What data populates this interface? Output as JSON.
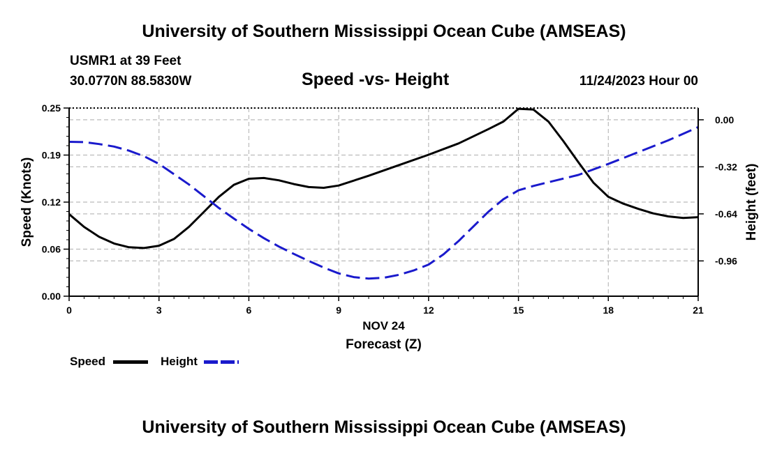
{
  "header": {
    "top_title": "University of Southern Mississippi Ocean Cube (AMSEAS)",
    "station": "USMR1 at 39 Feet",
    "coords": "30.0770N  88.5830W",
    "chart_title": "Speed -vs- Height",
    "date": "11/24/2023 Hour 00"
  },
  "footer": {
    "bottom_title": "University of Southern Mississippi Ocean Cube (AMSEAS)"
  },
  "colors": {
    "speed": "#000000",
    "height": "#1a1acc",
    "grid": "#bbbbbb"
  },
  "chart_data": {
    "type": "line",
    "title": "Speed -vs- Height",
    "xlabel_date": "NOV 24",
    "xlabel": "Forecast (Z)",
    "ylabel": "Speed (Knots)",
    "y2label": "Height (feet)",
    "xlim": [
      0,
      21
    ],
    "ylim": [
      0,
      0.25
    ],
    "y2lim": [
      -1.2,
      0.08
    ],
    "x_ticks": [
      0,
      3,
      6,
      9,
      12,
      15,
      18,
      21
    ],
    "x_tick_labels": [
      "0",
      "3",
      "6",
      "9",
      "12",
      "15",
      "18",
      "21"
    ],
    "y_ticks": [
      0,
      0.0625,
      0.125,
      0.1875,
      0.25
    ],
    "y_tick_labels": [
      "0.00",
      "0.06",
      "0.12",
      "0.19",
      "0.25"
    ],
    "y2_ticks": [
      0,
      -0.32,
      -0.64,
      -0.96
    ],
    "y2_tick_labels": [
      "0.00",
      "-0.32",
      "-0.64",
      "-0.96"
    ],
    "legend": [
      {
        "name": "Speed",
        "style": "solid"
      },
      {
        "name": "Height",
        "style": "dashed"
      }
    ],
    "series": [
      {
        "name": "Speed",
        "axis": "left",
        "x": [
          0,
          0.5,
          1,
          1.5,
          2,
          2.5,
          3,
          3.5,
          4,
          4.5,
          5,
          5.5,
          6,
          6.5,
          7,
          7.5,
          8,
          8.5,
          9,
          10,
          11,
          12,
          13,
          14,
          14.5,
          15,
          15.5,
          16,
          16.5,
          17,
          17.5,
          18,
          18.5,
          19,
          19.5,
          20,
          20.5,
          21
        ],
        "values": [
          0.109,
          0.092,
          0.079,
          0.07,
          0.065,
          0.064,
          0.067,
          0.076,
          0.092,
          0.112,
          0.132,
          0.148,
          0.156,
          0.157,
          0.154,
          0.149,
          0.145,
          0.144,
          0.147,
          0.16,
          0.174,
          0.188,
          0.203,
          0.222,
          0.232,
          0.249,
          0.248,
          0.232,
          0.206,
          0.178,
          0.151,
          0.132,
          0.123,
          0.116,
          0.11,
          0.106,
          0.104,
          0.105
        ]
      },
      {
        "name": "Height",
        "axis": "right",
        "x": [
          0,
          0.5,
          1,
          1.5,
          2,
          2.5,
          3,
          3.5,
          4,
          4.5,
          5,
          5.5,
          6,
          6.5,
          7,
          7.5,
          8,
          8.5,
          9,
          9.5,
          10,
          10.5,
          11,
          11.5,
          12,
          12.5,
          13,
          13.5,
          14,
          14.5,
          15,
          15.5,
          16,
          17,
          18,
          19,
          20,
          21
        ],
        "values": [
          -0.15,
          -0.152,
          -0.165,
          -0.182,
          -0.21,
          -0.248,
          -0.3,
          -0.37,
          -0.44,
          -0.52,
          -0.6,
          -0.672,
          -0.742,
          -0.805,
          -0.862,
          -0.912,
          -0.96,
          -1.005,
          -1.045,
          -1.07,
          -1.08,
          -1.075,
          -1.055,
          -1.025,
          -0.985,
          -0.915,
          -0.825,
          -0.725,
          -0.625,
          -0.54,
          -0.48,
          -0.45,
          -0.425,
          -0.375,
          -0.3,
          -0.22,
          -0.14,
          -0.05
        ]
      }
    ]
  }
}
